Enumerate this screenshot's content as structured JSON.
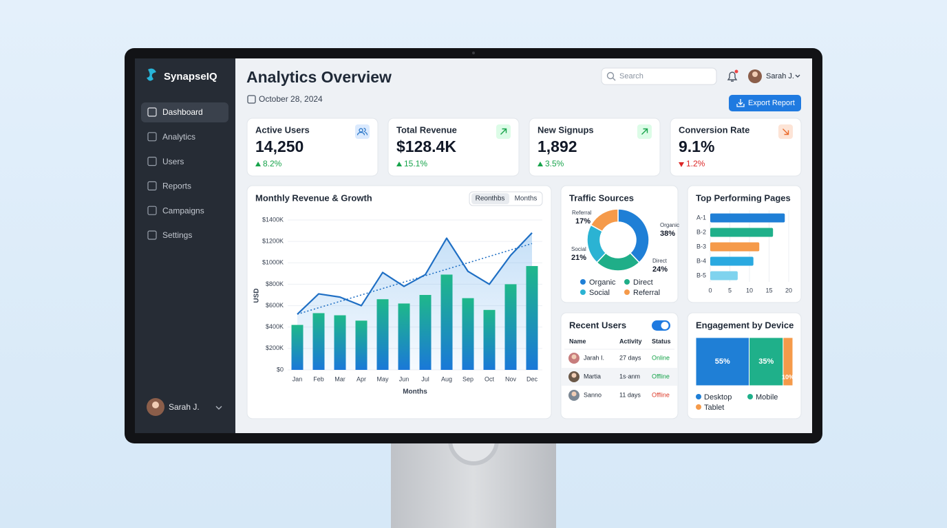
{
  "brand": "SynapseIQ",
  "nav": [
    "Dashboard",
    "Analytics",
    "Users",
    "Reports",
    "Campaigns",
    "Settings"
  ],
  "active_nav": 0,
  "sidebar_user": "Sarah J.",
  "header": {
    "title": "Analytics Overview",
    "date": "October 28, 2024",
    "search_placeholder": "Search",
    "user": "Sarah J.",
    "export_button": "Export Report"
  },
  "kpis": [
    {
      "label": "Active Users",
      "value": "14,250",
      "change": "8.2%",
      "trend": "up",
      "icon": "users"
    },
    {
      "label": "Total Revenue",
      "value": "$128.4K",
      "change": "15.1%",
      "trend": "up",
      "icon": "up"
    },
    {
      "label": "New Signups",
      "value": "1,892",
      "change": "3.5%",
      "trend": "up",
      "icon": "up"
    },
    {
      "label": "Conversion Rate",
      "value": "9.1%",
      "change": "1.2%",
      "trend": "down",
      "icon": "down"
    }
  ],
  "revenue_chart": {
    "type": "bar_line",
    "title": "Monthly Revenue & Growth",
    "toggle": [
      "Reonthbs",
      "Months"
    ],
    "ylabel": "USD",
    "xlabel": "Months",
    "categories": [
      "Jan",
      "Feb",
      "Mar",
      "Apr",
      "May",
      "Jun",
      "Jul",
      "Aug",
      "Sep",
      "Oct",
      "Nov",
      "Dec"
    ],
    "bars": {
      "colors": [
        "#1fb88a",
        "#1a78d8"
      ],
      "values": [
        420000,
        530000,
        510000,
        460000,
        660000,
        620000,
        700000,
        890000,
        670000,
        560000,
        800000,
        970000
      ]
    },
    "line": {
      "color": "#1f6fc4",
      "values": [
        520000,
        710000,
        680000,
        600000,
        910000,
        780000,
        890000,
        1230000,
        920000,
        800000,
        1070000,
        1280000
      ]
    },
    "trend_start": 520000,
    "trend_end": 1180000,
    "ylim": [
      0,
      1400000
    ],
    "yticks": [
      {
        "value": 0,
        "label": "$0"
      },
      {
        "value": 200000,
        "label": "$200K"
      },
      {
        "value": 400000,
        "label": "$400K"
      },
      {
        "value": 600000,
        "label": "$600K"
      },
      {
        "value": 800000,
        "label": "$800K"
      },
      {
        "value": 1000000,
        "label": "$1000K"
      },
      {
        "value": 1200000,
        "label": "$1200K"
      },
      {
        "value": 1400000,
        "label": "$1400K"
      }
    ],
    "grid": true
  },
  "traffic_chart": {
    "type": "donut",
    "title": "Traffic Sources",
    "categories": [
      "Organic",
      "Direct",
      "Social",
      "Referral"
    ],
    "values": [
      38,
      24,
      21,
      17
    ],
    "value_labels": [
      "38%",
      "24%",
      "21%",
      "17%"
    ],
    "colors": [
      "#1f7fd6",
      "#1fae88",
      "#2bb3d3",
      "#f59a4a"
    ]
  },
  "pages_chart": {
    "type": "hbar",
    "title": "Top Performing Pages",
    "categories": [
      "A-1",
      "B-2",
      "B-3",
      "B-4",
      "B-5"
    ],
    "values": [
      19,
      16,
      12.5,
      11,
      7
    ],
    "colors": [
      "#1f7fd6",
      "#1fb08a",
      "#f59a4a",
      "#2aa9e0",
      "#7fd3ee"
    ],
    "xlim": [
      0,
      20
    ],
    "xticks": [
      0,
      5,
      10,
      15,
      20
    ],
    "grid": true
  },
  "recent_users": {
    "title": "Recent Users",
    "toggle_on": true,
    "columns": [
      "Name",
      "Activity",
      "Status"
    ],
    "rows": [
      [
        "Jarah I.",
        "27 days",
        "Online"
      ],
      [
        "Martia",
        "1s·anm",
        "Offline"
      ],
      [
        "Sanno",
        "11 days",
        "Offline"
      ]
    ],
    "status_colors": [
      "#16a34a",
      "#16a34a",
      "#dc3b2a"
    ]
  },
  "device_chart": {
    "type": "treemap",
    "title": "Engagement by Device",
    "categories": [
      "Desktop",
      "Mobile",
      "Tablet"
    ],
    "values": [
      55,
      35,
      10
    ],
    "value_labels": [
      "55%",
      "35%",
      "10%"
    ],
    "colors": [
      "#1f7fd6",
      "#1fb08a",
      "#f59a4a"
    ]
  }
}
